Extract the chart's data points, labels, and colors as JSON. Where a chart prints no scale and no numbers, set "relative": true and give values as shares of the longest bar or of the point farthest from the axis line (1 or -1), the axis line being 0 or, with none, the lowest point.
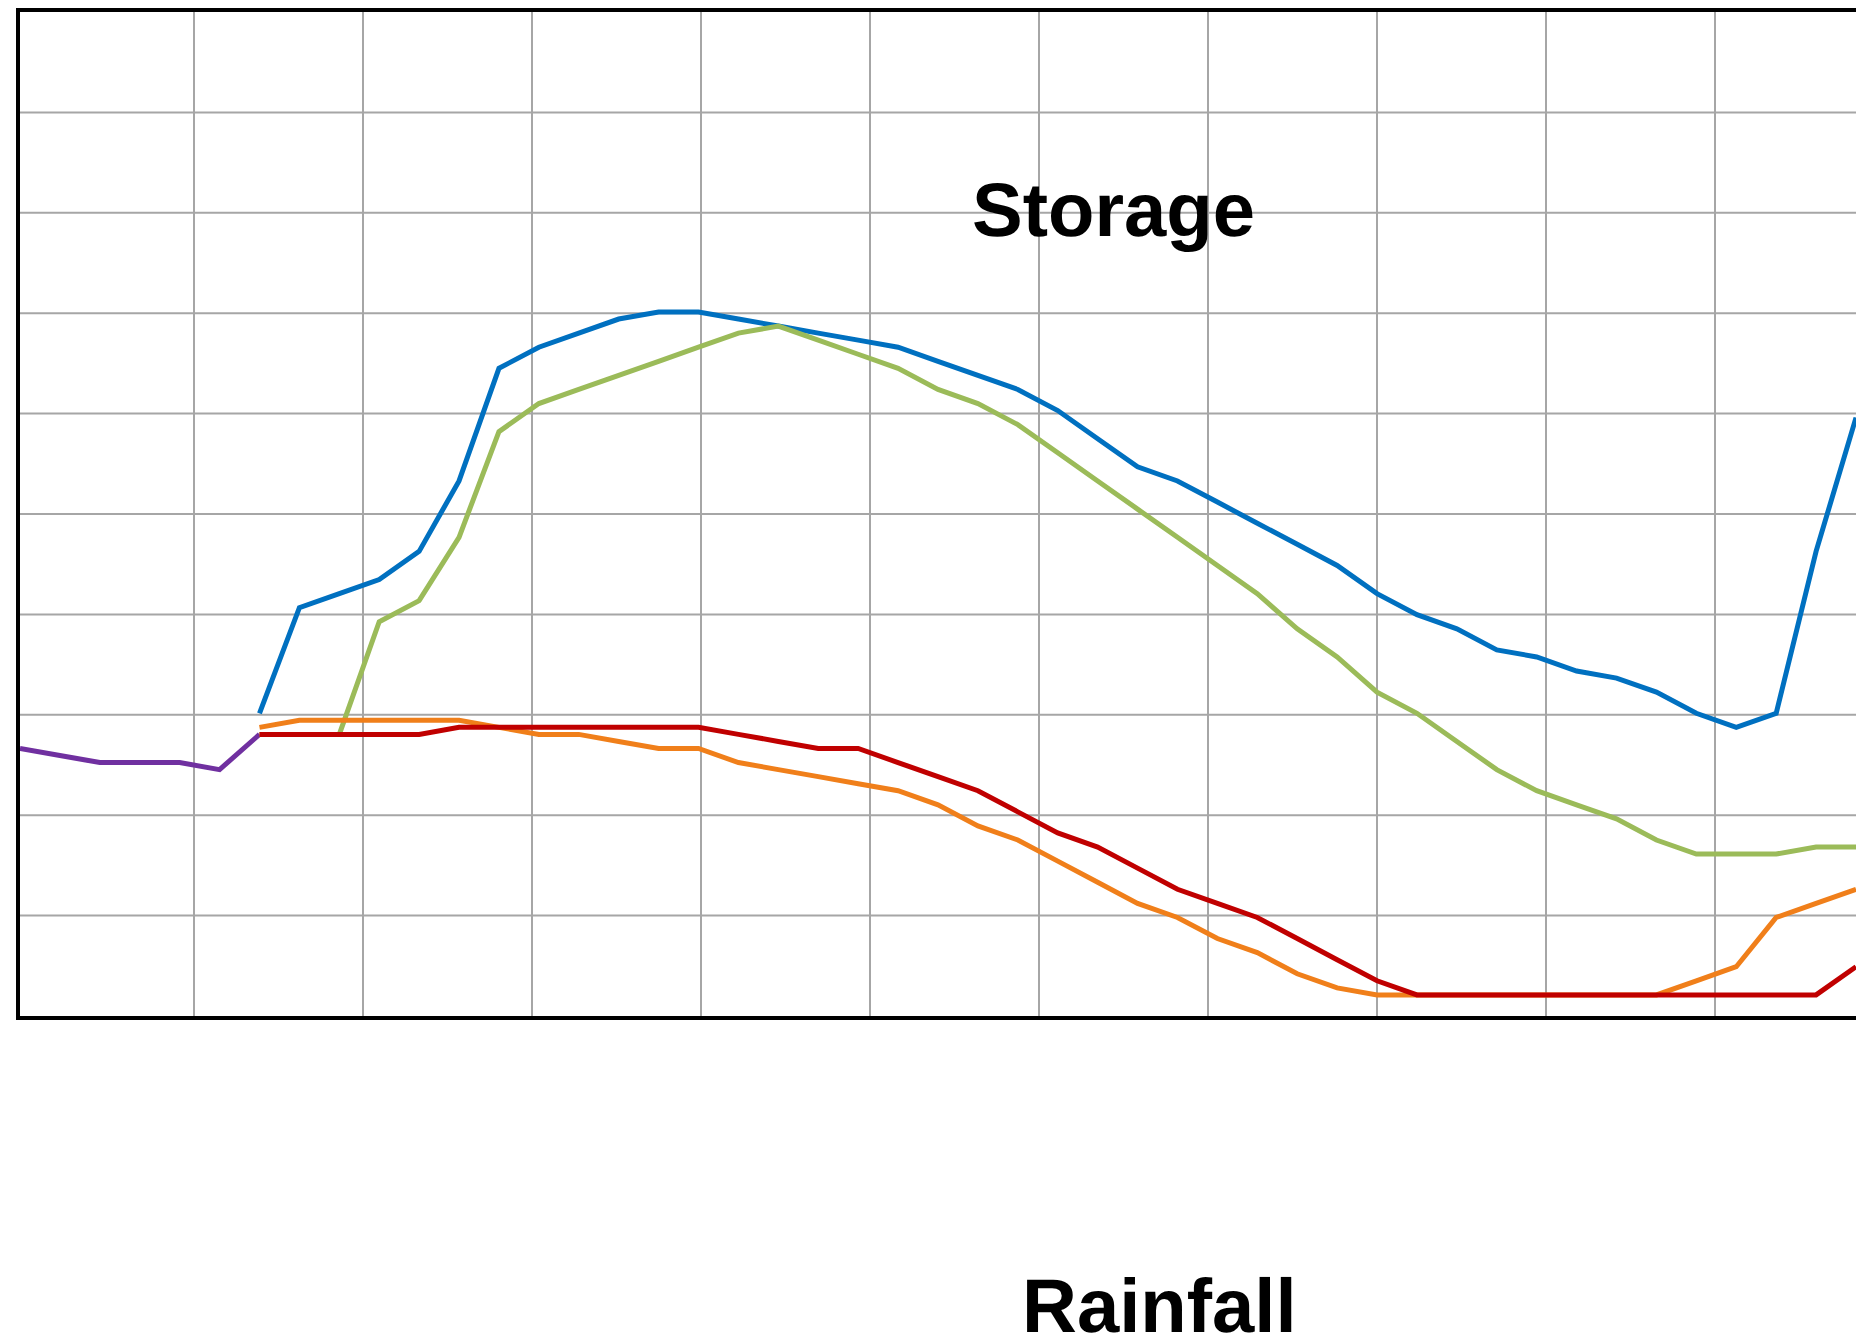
{
  "chart_data": {
    "type": "line",
    "relative": true,
    "grid": true,
    "marker": "none",
    "line_style": "solid",
    "categories": [
      null,
      null,
      null,
      null,
      null,
      null,
      null,
      null,
      null,
      null,
      null,
      null,
      null,
      null,
      null,
      null,
      null,
      null,
      null,
      null,
      null,
      null,
      null,
      null,
      null,
      null,
      null,
      null,
      null,
      null,
      null,
      null,
      null,
      null,
      null,
      null,
      null,
      null,
      null,
      null,
      null,
      null,
      null,
      null,
      null,
      null,
      null
    ],
    "series": [
      {
        "color": "#7030a0",
        "values": [
          0.38,
          0.37,
          0.36,
          0.36,
          0.36,
          0.35,
          0.4,
          null,
          null,
          null,
          null,
          null,
          null,
          null,
          null,
          null,
          null,
          null,
          null,
          null,
          null,
          null,
          null,
          null,
          null,
          null,
          null,
          null,
          null,
          null,
          null,
          null,
          null,
          null,
          null,
          null,
          null,
          null,
          null,
          null,
          null,
          null,
          null,
          null,
          null,
          null,
          null
        ]
      },
      {
        "color": "#0070c0",
        "values": [
          null,
          null,
          null,
          null,
          null,
          null,
          0.43,
          0.58,
          0.6,
          0.62,
          0.66,
          0.76,
          0.92,
          0.95,
          0.97,
          0.99,
          1.0,
          1.0,
          0.99,
          0.98,
          0.97,
          0.96,
          0.95,
          0.93,
          0.91,
          0.89,
          0.86,
          0.82,
          0.78,
          0.76,
          0.73,
          0.7,
          0.67,
          0.64,
          0.6,
          0.57,
          0.55,
          0.52,
          0.51,
          0.49,
          0.48,
          0.46,
          0.43,
          0.41,
          0.43,
          0.66,
          0.85
        ]
      },
      {
        "color": "#9bbb59",
        "values": [
          null,
          null,
          null,
          null,
          null,
          null,
          0.4,
          0.4,
          0.4,
          0.56,
          0.59,
          0.68,
          0.83,
          0.87,
          0.89,
          0.91,
          0.93,
          0.95,
          0.97,
          0.98,
          0.96,
          0.94,
          0.92,
          0.89,
          0.87,
          0.84,
          0.8,
          0.76,
          0.72,
          0.68,
          0.64,
          0.6,
          0.55,
          0.51,
          0.46,
          0.43,
          0.39,
          0.35,
          0.32,
          0.3,
          0.28,
          0.25,
          0.23,
          0.23,
          0.23,
          0.24,
          0.24
        ]
      },
      {
        "color": "#f07f1a",
        "values": [
          null,
          null,
          null,
          null,
          null,
          null,
          0.41,
          0.42,
          0.42,
          0.42,
          0.42,
          0.42,
          0.41,
          0.4,
          0.4,
          0.39,
          0.38,
          0.38,
          0.36,
          0.35,
          0.34,
          0.33,
          0.32,
          0.3,
          0.27,
          0.25,
          0.22,
          0.19,
          0.16,
          0.14,
          0.11,
          0.09,
          0.06,
          0.04,
          0.03,
          0.03,
          0.03,
          0.03,
          0.03,
          0.03,
          0.03,
          0.03,
          0.05,
          0.07,
          0.14,
          0.16,
          0.18
        ]
      },
      {
        "color": "#c00000",
        "values": [
          null,
          null,
          null,
          null,
          null,
          null,
          0.4,
          0.4,
          0.4,
          0.4,
          0.4,
          0.41,
          0.41,
          0.41,
          0.41,
          0.41,
          0.41,
          0.41,
          0.4,
          0.39,
          0.38,
          0.38,
          0.36,
          0.34,
          0.32,
          0.29,
          0.26,
          0.24,
          0.21,
          0.18,
          0.16,
          0.14,
          0.11,
          0.08,
          0.05,
          0.03,
          0.03,
          0.03,
          0.03,
          0.03,
          0.03,
          0.03,
          0.03,
          0.03,
          0.03,
          0.03,
          0.07
        ]
      }
    ],
    "annotations": [
      "Storage",
      "Rainfall"
    ]
  }
}
